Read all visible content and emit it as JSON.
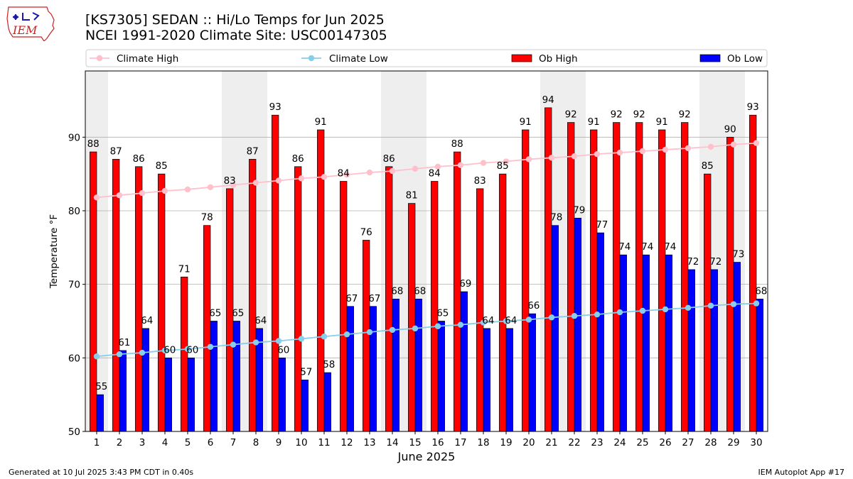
{
  "header": {
    "title_line1": "[KS7305] SEDAN :: Hi/Lo Temps for Jun 2025",
    "title_line2": "NCEI 1991-2020 Climate Site: USC00147305",
    "logo_text": "IEM"
  },
  "footer": {
    "generated": "Generated at 10 Jul 2025 3:43 PM CDT in 0.40s",
    "app": "IEM Autoplot App #17"
  },
  "colors": {
    "ob_high": "#ff0000",
    "ob_low": "#0000ff",
    "climate_high": "#ffc0cb",
    "climate_low": "#87ceeb",
    "weekend_shade": "#eeeeee",
    "grid": "#b0b0b0"
  },
  "chart_data": {
    "type": "bar",
    "xlabel": "June 2025",
    "ylabel": "Temperature °F",
    "ylim": [
      50,
      99
    ],
    "yticks": [
      50,
      60,
      70,
      80,
      90
    ],
    "grid": "horizontal",
    "legend_position": "top",
    "categories": [
      "1",
      "2",
      "3",
      "4",
      "5",
      "6",
      "7",
      "8",
      "9",
      "10",
      "11",
      "12",
      "13",
      "14",
      "15",
      "16",
      "17",
      "18",
      "19",
      "20",
      "21",
      "22",
      "23",
      "24",
      "25",
      "26",
      "27",
      "28",
      "29",
      "30"
    ],
    "shaded_days": [
      "1",
      "7",
      "8",
      "14",
      "15",
      "21",
      "22",
      "28",
      "29"
    ],
    "series": [
      {
        "name": "Ob High",
        "kind": "bar",
        "values": [
          88,
          87,
          86,
          85,
          71,
          78,
          83,
          87,
          93,
          86,
          91,
          84,
          76,
          86,
          81,
          84,
          88,
          83,
          85,
          91,
          94,
          92,
          91,
          92,
          92,
          91,
          92,
          85,
          90,
          93
        ]
      },
      {
        "name": "Ob Low",
        "kind": "bar",
        "values": [
          55,
          61,
          64,
          60,
          60,
          65,
          65,
          64,
          60,
          57,
          58,
          67,
          67,
          68,
          68,
          65,
          69,
          64,
          64,
          66,
          78,
          79,
          77,
          74,
          74,
          74,
          72,
          72,
          73,
          68
        ]
      },
      {
        "name": "Climate High",
        "kind": "line",
        "values": [
          81.8,
          82.1,
          82.4,
          82.7,
          82.9,
          83.2,
          83.5,
          83.8,
          84.1,
          84.4,
          84.6,
          84.9,
          85.2,
          85.4,
          85.7,
          86.0,
          86.2,
          86.5,
          86.7,
          87.0,
          87.2,
          87.4,
          87.7,
          87.9,
          88.1,
          88.3,
          88.5,
          88.7,
          89.0,
          89.2
        ]
      },
      {
        "name": "Climate Low",
        "kind": "line",
        "values": [
          60.2,
          60.5,
          60.7,
          61.0,
          61.2,
          61.5,
          61.8,
          62.1,
          62.3,
          62.6,
          62.9,
          63.2,
          63.5,
          63.8,
          64.0,
          64.3,
          64.5,
          64.8,
          65.0,
          65.2,
          65.5,
          65.7,
          65.9,
          66.2,
          66.4,
          66.6,
          66.8,
          67.1,
          67.3,
          67.4
        ]
      }
    ]
  }
}
